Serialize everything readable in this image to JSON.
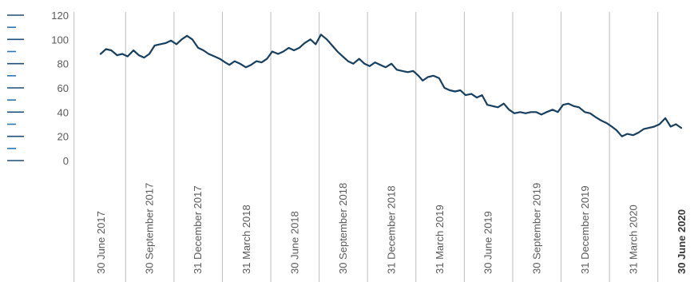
{
  "chart_data": {
    "type": "line",
    "title": "",
    "xlabel": "",
    "ylabel": "",
    "ylim": [
      0,
      120
    ],
    "y_ticks": [
      "0",
      "20",
      "40",
      "60",
      "80",
      "100",
      "120"
    ],
    "x_tick_labels": [
      "30 June 2017",
      "30 September 2017",
      "31 December 2017",
      "31 March 2018",
      "30 June 2018",
      "30 September 2018",
      "31 December 2018",
      "31 March 2019",
      "30 June 2019",
      "30 September 2019",
      "31 December 2019",
      "31 March 2020",
      "30 June 2020"
    ],
    "bold_x_label": "30 June 2020",
    "grid": "vertical lines at quarter ends",
    "legend": "none",
    "series": [
      {
        "color": "#173f5f",
        "x": [
          "2017-06-30",
          "2017-07-10",
          "2017-07-20",
          "2017-07-31",
          "2017-08-10",
          "2017-08-20",
          "2017-08-31",
          "2017-09-10",
          "2017-09-20",
          "2017-09-30",
          "2017-10-10",
          "2017-10-20",
          "2017-10-31",
          "2017-11-10",
          "2017-11-20",
          "2017-11-30",
          "2017-12-10",
          "2017-12-20",
          "2017-12-31",
          "2018-01-10",
          "2018-01-20",
          "2018-01-31",
          "2018-02-10",
          "2018-02-20",
          "2018-02-28",
          "2018-03-10",
          "2018-03-20",
          "2018-03-31",
          "2018-04-10",
          "2018-04-20",
          "2018-04-30",
          "2018-05-10",
          "2018-05-20",
          "2018-05-31",
          "2018-06-10",
          "2018-06-20",
          "2018-06-30",
          "2018-07-10",
          "2018-07-20",
          "2018-07-31",
          "2018-08-10",
          "2018-08-20",
          "2018-08-31",
          "2018-09-10",
          "2018-09-20",
          "2018-09-30",
          "2018-10-10",
          "2018-10-20",
          "2018-10-31",
          "2018-11-10",
          "2018-11-20",
          "2018-11-30",
          "2018-12-10",
          "2018-12-20",
          "2018-12-31",
          "2019-01-10",
          "2019-01-20",
          "2019-01-31",
          "2019-02-10",
          "2019-02-20",
          "2019-02-28",
          "2019-03-10",
          "2019-03-20",
          "2019-03-31",
          "2019-04-10",
          "2019-04-20",
          "2019-04-30",
          "2019-05-10",
          "2019-05-20",
          "2019-05-31",
          "2019-06-10",
          "2019-06-20",
          "2019-06-30",
          "2019-07-10",
          "2019-07-20",
          "2019-07-31",
          "2019-08-10",
          "2019-08-20",
          "2019-08-31",
          "2019-09-10",
          "2019-09-20",
          "2019-09-30",
          "2019-10-10",
          "2019-10-20",
          "2019-10-31",
          "2019-11-10",
          "2019-11-20",
          "2019-11-30",
          "2019-12-10",
          "2019-12-20",
          "2019-12-31",
          "2020-01-10",
          "2020-01-20",
          "2020-01-31",
          "2020-02-10",
          "2020-02-20",
          "2020-02-29",
          "2020-03-10",
          "2020-03-20",
          "2020-03-31",
          "2020-04-10",
          "2020-04-20",
          "2020-04-30",
          "2020-05-10",
          "2020-05-20",
          "2020-05-31",
          "2020-06-10",
          "2020-06-20",
          "2020-06-30"
        ],
        "y": [
          88,
          92,
          91,
          87,
          88,
          86,
          91,
          87,
          85,
          88,
          95,
          96,
          97,
          99,
          96,
          100,
          103,
          100,
          93,
          91,
          88,
          86,
          84,
          81,
          79,
          82,
          80,
          77,
          79,
          82,
          81,
          84,
          90,
          88,
          90,
          93,
          91,
          93,
          97,
          100,
          96,
          104,
          100,
          95,
          90,
          86,
          82,
          80,
          84,
          80,
          78,
          81,
          79,
          77,
          80,
          75,
          74,
          73,
          74,
          70,
          66,
          69,
          70,
          68,
          60,
          58,
          57,
          58,
          54,
          55,
          52,
          54,
          46,
          45,
          44,
          47,
          42,
          39,
          40,
          39,
          40,
          40,
          38,
          40,
          42,
          40,
          46,
          47,
          45,
          44,
          40,
          39,
          36,
          33,
          31,
          28,
          25,
          20,
          22,
          21,
          23,
          26,
          27,
          28,
          30,
          35,
          28,
          30,
          27
        ]
      }
    ]
  }
}
